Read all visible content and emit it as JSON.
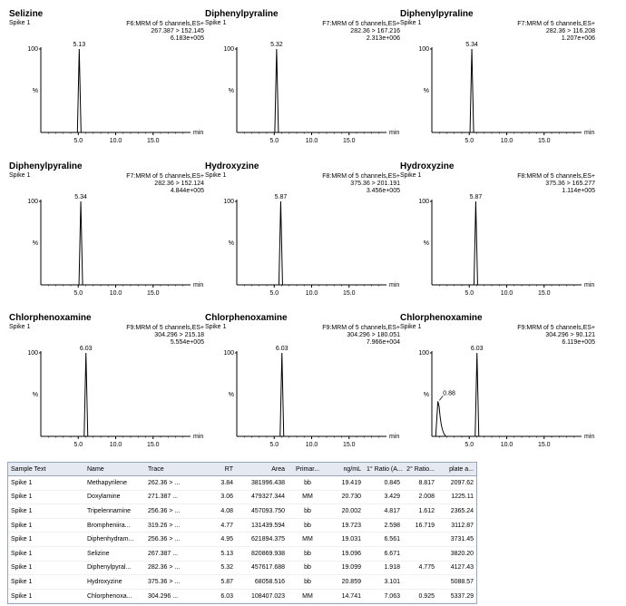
{
  "chart_data": [
    {
      "type": "line",
      "title": "Selizine",
      "sample": "Spike 1",
      "channel": "F6:MRM of 5 channels,ES+",
      "transition": "267.387 > 152.145",
      "intensity": "6.183e+005",
      "ylabel": "%",
      "xlabel": "min",
      "yticks": [
        "100",
        "%"
      ],
      "xticks": [
        "5.0",
        "10.0",
        "15.0"
      ],
      "xlim": [
        0,
        20
      ],
      "ylim": [
        0,
        100
      ],
      "peaks": [
        {
          "rt": 5.13,
          "label": "5.13",
          "height": 100
        }
      ]
    },
    {
      "type": "line",
      "title": "Diphenylpyraline",
      "sample": "Spike 1",
      "channel": "F7:MRM of 5 channels,ES+",
      "transition": "282.36 > 167.216",
      "intensity": "2.313e+006",
      "ylabel": "%",
      "xlabel": "min",
      "yticks": [
        "100",
        "%"
      ],
      "xticks": [
        "5.0",
        "10.0",
        "15.0"
      ],
      "xlim": [
        0,
        20
      ],
      "ylim": [
        0,
        100
      ],
      "peaks": [
        {
          "rt": 5.32,
          "label": "5.32",
          "height": 100
        }
      ]
    },
    {
      "type": "line",
      "title": "Diphenylpyraline",
      "sample": "Spike 1",
      "channel": "F7:MRM of 5 channels,ES+",
      "transition": "282.36 > 116.208",
      "intensity": "1.207e+006",
      "ylabel": "%",
      "xlabel": "min",
      "yticks": [
        "100",
        "%"
      ],
      "xticks": [
        "5.0",
        "10.0",
        "15.0"
      ],
      "xlim": [
        0,
        20
      ],
      "ylim": [
        0,
        100
      ],
      "peaks": [
        {
          "rt": 5.34,
          "label": "5.34",
          "height": 100
        }
      ]
    },
    {
      "type": "line",
      "title": "Diphenylpyraline",
      "sample": "Spike 1",
      "channel": "F7:MRM of 5 channels,ES+",
      "transition": "282.36 > 152.124",
      "intensity": "4.844e+005",
      "ylabel": "%",
      "xlabel": "min",
      "yticks": [
        "100",
        "%"
      ],
      "xticks": [
        "5.0",
        "10.0",
        "15.0"
      ],
      "xlim": [
        0,
        20
      ],
      "ylim": [
        0,
        100
      ],
      "peaks": [
        {
          "rt": 5.34,
          "label": "5.34",
          "height": 100
        }
      ]
    },
    {
      "type": "line",
      "title": "Hydroxyzine",
      "sample": "Spike 1",
      "channel": "F8:MRM of 5 channels,ES+",
      "transition": "375.36 > 201.191",
      "intensity": "3.456e+005",
      "ylabel": "%",
      "xlabel": "min",
      "yticks": [
        "100",
        "%"
      ],
      "xticks": [
        "5.0",
        "10.0",
        "15.0"
      ],
      "xlim": [
        0,
        20
      ],
      "ylim": [
        0,
        100
      ],
      "peaks": [
        {
          "rt": 5.87,
          "label": "5.87",
          "height": 100
        }
      ]
    },
    {
      "type": "line",
      "title": "Hydroxyzine",
      "sample": "Spike 1",
      "channel": "F8:MRM of 5 channels,ES+",
      "transition": "375.36 > 165.277",
      "intensity": "1.114e+005",
      "ylabel": "%",
      "xlabel": "min",
      "yticks": [
        "100",
        "%"
      ],
      "xticks": [
        "5.0",
        "10.0",
        "15.0"
      ],
      "xlim": [
        0,
        20
      ],
      "ylim": [
        0,
        100
      ],
      "peaks": [
        {
          "rt": 5.87,
          "label": "5.87",
          "height": 100
        }
      ]
    },
    {
      "type": "line",
      "title": "Chlorphenoxamine",
      "sample": "Spike 1",
      "channel": "F9:MRM of 5 channels,ES+",
      "transition": "304.296 > 215.18",
      "intensity": "5.554e+005",
      "ylabel": "%",
      "xlabel": "min",
      "yticks": [
        "100",
        "%"
      ],
      "xticks": [
        "5.0",
        "10.0",
        "15.0"
      ],
      "xlim": [
        0,
        20
      ],
      "ylim": [
        0,
        100
      ],
      "peaks": [
        {
          "rt": 6.03,
          "label": "6.03",
          "height": 100
        }
      ]
    },
    {
      "type": "line",
      "title": "Chlorphenoxamine",
      "sample": "Spike 1",
      "channel": "F9:MRM of 5 channels,ES+",
      "transition": "304.296 > 180.051",
      "intensity": "7.966e+004",
      "ylabel": "%",
      "xlabel": "min",
      "yticks": [
        "100",
        "%"
      ],
      "xticks": [
        "5.0",
        "10.0",
        "15.0"
      ],
      "xlim": [
        0,
        20
      ],
      "ylim": [
        0,
        100
      ],
      "peaks": [
        {
          "rt": 6.03,
          "label": "6.03",
          "height": 100
        }
      ]
    },
    {
      "type": "line",
      "title": "Chlorphenoxamine",
      "sample": "Spike 1",
      "channel": "F9:MRM of 5 channels,ES+",
      "transition": "304.296 > 90.121",
      "intensity": "6.119e+005",
      "ylabel": "%",
      "xlabel": "min",
      "yticks": [
        "100",
        "%"
      ],
      "xticks": [
        "5.0",
        "10.0",
        "15.0"
      ],
      "xlim": [
        0,
        20
      ],
      "ylim": [
        0,
        100
      ],
      "peaks": [
        {
          "rt": 6.03,
          "label": "6.03",
          "height": 100
        },
        {
          "rt": 0.88,
          "label": "0.88",
          "height": 42,
          "tail": true
        }
      ]
    }
  ],
  "table": {
    "headers": [
      "Sample Text",
      "Name",
      "Trace",
      "RT",
      "Area",
      "Primar...",
      "ng/mL",
      "1° Ratio (A...",
      "2° Ratio...",
      "plate a..."
    ],
    "rows": [
      [
        "Spike 1",
        "Methapyrilene",
        "262.36 > ...",
        "3.84",
        "381996.438",
        "bb",
        "19.419",
        "0.845",
        "8.817",
        "2097.62"
      ],
      [
        "Spike 1",
        "Doxylamine",
        "271.387 ...",
        "3.06",
        "479327.344",
        "MM",
        "20.730",
        "3.429",
        "2.008",
        "1225.11"
      ],
      [
        "Spike 1",
        "Tripelennamine",
        "256.36 > ...",
        "4.08",
        "457093.750",
        "bb",
        "20.002",
        "4.817",
        "1.612",
        "2365.24"
      ],
      [
        "Spike 1",
        "Brompheniira...",
        "319.26 > ...",
        "4.77",
        "131439.594",
        "bb",
        "19.723",
        "2.598",
        "16.719",
        "3112.87"
      ],
      [
        "Spike 1",
        "Diphenhydram...",
        "256.36 > ...",
        "4.95",
        "621894.375",
        "MM",
        "19.031",
        "6.561",
        "",
        "3731.45"
      ],
      [
        "Spike 1",
        "Selizine",
        "267.387 ...",
        "5.13",
        "820869.938",
        "bb",
        "19.096",
        "6.671",
        "",
        "3820.20"
      ],
      [
        "Spike 1",
        "Diphenylpyral...",
        "282.36 > ...",
        "5.32",
        "457617.688",
        "bb",
        "19.099",
        "1.918",
        "4.775",
        "4127.43"
      ],
      [
        "Spike 1",
        "Hydroxyzine",
        "375.36 > ...",
        "5.87",
        "68058.516",
        "bb",
        "20.859",
        "3.101",
        "",
        "5088.57"
      ],
      [
        "Spike 1",
        "Chlorphenoxa...",
        "304.296 ...",
        "6.03",
        "108407.023",
        "MM",
        "14.741",
        "7.063",
        "0.925",
        "5337.29"
      ]
    ]
  }
}
